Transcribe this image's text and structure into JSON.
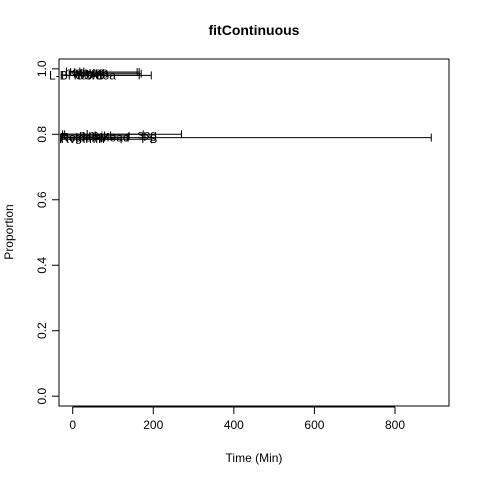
{
  "chart_data": {
    "type": "scatter",
    "title": "fitContinuous",
    "xlabel": "Time (Min)",
    "ylabel": "Proportion",
    "xlim": [
      -34,
      934
    ],
    "ylim": [
      -0.03,
      1.03
    ],
    "x_ticks": [
      0,
      200,
      400,
      600,
      800
    ],
    "y_ticks": [
      0.0,
      0.2,
      0.4,
      0.6,
      0.8,
      1.0
    ],
    "x_tick_labels": [
      "0",
      "200",
      "400",
      "600",
      "800"
    ],
    "y_tick_labels": [
      "0.0",
      "0.2",
      "0.4",
      "0.6",
      "0.8",
      "1.0"
    ],
    "grid": false,
    "series": [
      {
        "points": [
          {
            "label": "L-BFGS-B",
            "x": 10,
            "xmin": -25,
            "xmax": 195,
            "y": 0.98
          },
          {
            "label": "bobyqa",
            "x": 30,
            "xmin": -5,
            "xmax": 165,
            "y": 0.99
          },
          {
            "label": "nlminb",
            "x": 45,
            "xmin": 10,
            "xmax": 170,
            "y": 0.985
          },
          {
            "label": "newuoa",
            "x": 55,
            "xmin": 15,
            "xmax": 165,
            "y": 0.98
          },
          {
            "label": "uobyqa",
            "x": 40,
            "xmin": 5,
            "xmax": 160,
            "y": 0.99
          },
          {
            "label": "nlm",
            "x": 40,
            "xmin": -20,
            "xmax": 175,
            "y": 0.8
          },
          {
            "label": "spg",
            "x": 185,
            "xmin": -25,
            "xmax": 270,
            "y": 0.8
          },
          {
            "label": "Rcgmin",
            "x": 20,
            "xmin": -30,
            "xmax": 135,
            "y": 0.79
          },
          {
            "label": "Nelder-Mead",
            "x": 55,
            "xmin": -30,
            "xmax": 890,
            "y": 0.79
          },
          {
            "label": "Rvmmin",
            "x": 25,
            "xmin": -30,
            "xmax": 120,
            "y": 0.785
          },
          {
            "label": "hjkb",
            "x": 80,
            "xmin": -25,
            "xmax": 140,
            "y": 0.795
          },
          {
            "label": "PS",
            "x": 190,
            "xmin": 10,
            "xmax": 195,
            "y": 0.785
          }
        ]
      }
    ]
  }
}
